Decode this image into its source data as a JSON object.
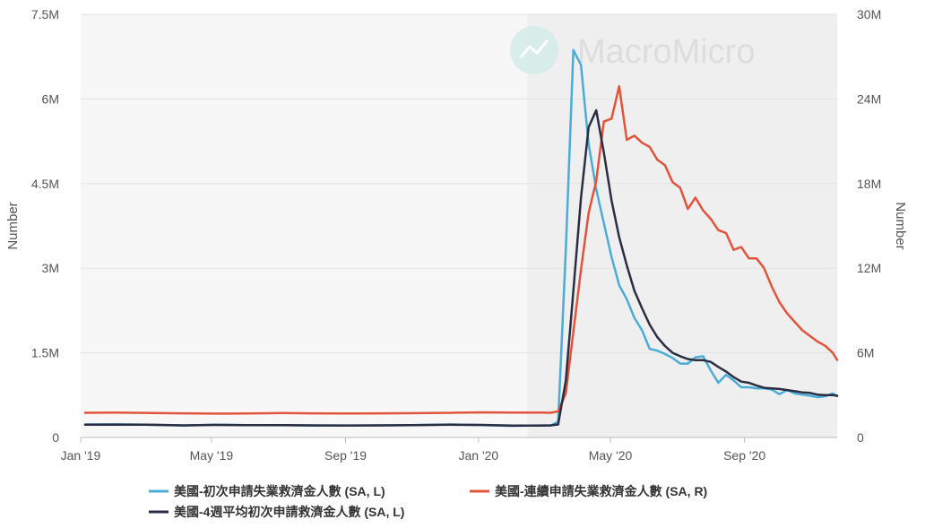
{
  "chart_data": {
    "type": "line",
    "title": "",
    "watermark": "MacroMicro",
    "y_left": {
      "label": "Number",
      "ticks": [
        "0",
        "1.5M",
        "3M",
        "4.5M",
        "6M",
        "7.5M"
      ],
      "range": [
        0,
        7500000
      ]
    },
    "y_right": {
      "label": "Number",
      "ticks": [
        "0",
        "6M",
        "12M",
        "18M",
        "24M",
        "30M"
      ],
      "range": [
        0,
        30000000
      ]
    },
    "x_axis": {
      "start": "2019-01-01",
      "end": "2020-11-25",
      "ticks": [
        {
          "label": "Jan '19",
          "date": "2019-01-01"
        },
        {
          "label": "May '19",
          "date": "2019-05-01"
        },
        {
          "label": "Sep '19",
          "date": "2019-09-01"
        },
        {
          "label": "Jan '20",
          "date": "2020-01-01"
        },
        {
          "label": "May '20",
          "date": "2020-05-01"
        },
        {
          "label": "Sep '20",
          "date": "2020-09-01"
        }
      ]
    },
    "recession_band": {
      "start": "2020-02-15",
      "end": "2020-11-25",
      "color": "#efefef"
    },
    "grid": true,
    "legend_position": "bottom",
    "series": [
      {
        "name": "美國-初次申請失業救濟金人數 (SA, L)",
        "axis": "left",
        "color": "#4bacd6",
        "points": [
          [
            "2019-01-05",
            230000
          ],
          [
            "2019-02-02",
            235000
          ],
          [
            "2019-03-02",
            225000
          ],
          [
            "2019-04-06",
            210000
          ],
          [
            "2019-05-04",
            228000
          ],
          [
            "2019-06-01",
            220000
          ],
          [
            "2019-07-06",
            216000
          ],
          [
            "2019-08-03",
            212000
          ],
          [
            "2019-09-07",
            210000
          ],
          [
            "2019-10-05",
            215000
          ],
          [
            "2019-11-02",
            220000
          ],
          [
            "2019-12-07",
            230000
          ],
          [
            "2020-01-04",
            220000
          ],
          [
            "2020-02-01",
            205000
          ],
          [
            "2020-02-29",
            215000
          ],
          [
            "2020-03-07",
            210000
          ],
          [
            "2020-03-14",
            280000
          ],
          [
            "2020-03-21",
            3300000
          ],
          [
            "2020-03-28",
            6867000
          ],
          [
            "2020-04-04",
            6600000
          ],
          [
            "2020-04-11",
            5200000
          ],
          [
            "2020-04-18",
            4400000
          ],
          [
            "2020-04-25",
            3800000
          ],
          [
            "2020-05-02",
            3200000
          ],
          [
            "2020-05-09",
            2700000
          ],
          [
            "2020-05-16",
            2450000
          ],
          [
            "2020-05-23",
            2120000
          ],
          [
            "2020-05-30",
            1900000
          ],
          [
            "2020-06-06",
            1570000
          ],
          [
            "2020-06-13",
            1540000
          ],
          [
            "2020-06-20",
            1480000
          ],
          [
            "2020-06-27",
            1410000
          ],
          [
            "2020-07-04",
            1310000
          ],
          [
            "2020-07-11",
            1310000
          ],
          [
            "2020-07-18",
            1420000
          ],
          [
            "2020-07-25",
            1440000
          ],
          [
            "2020-08-01",
            1190000
          ],
          [
            "2020-08-08",
            970000
          ],
          [
            "2020-08-15",
            1110000
          ],
          [
            "2020-08-22",
            1010000
          ],
          [
            "2020-08-29",
            890000
          ],
          [
            "2020-09-05",
            890000
          ],
          [
            "2020-09-12",
            870000
          ],
          [
            "2020-09-19",
            870000
          ],
          [
            "2020-09-26",
            849000
          ],
          [
            "2020-10-03",
            767000
          ],
          [
            "2020-10-10",
            840000
          ],
          [
            "2020-10-17",
            780000
          ],
          [
            "2020-10-24",
            760000
          ],
          [
            "2020-10-31",
            740000
          ],
          [
            "2020-11-07",
            715000
          ],
          [
            "2020-11-14",
            730000
          ],
          [
            "2020-11-21",
            780000
          ],
          [
            "2020-11-25",
            730000
          ]
        ]
      },
      {
        "name": "美國-連續申請失業救濟金人數 (SA, R)",
        "axis": "right",
        "color": "#e0543c",
        "points": [
          [
            "2019-01-05",
            1750000
          ],
          [
            "2019-02-02",
            1760000
          ],
          [
            "2019-03-02",
            1740000
          ],
          [
            "2019-04-06",
            1710000
          ],
          [
            "2019-05-04",
            1690000
          ],
          [
            "2019-06-01",
            1700000
          ],
          [
            "2019-07-06",
            1730000
          ],
          [
            "2019-08-03",
            1710000
          ],
          [
            "2019-09-07",
            1700000
          ],
          [
            "2019-10-05",
            1710000
          ],
          [
            "2019-11-02",
            1720000
          ],
          [
            "2019-12-07",
            1750000
          ],
          [
            "2020-01-04",
            1780000
          ],
          [
            "2020-02-01",
            1760000
          ],
          [
            "2020-02-29",
            1760000
          ],
          [
            "2020-03-07",
            1750000
          ],
          [
            "2020-03-14",
            1850000
          ],
          [
            "2020-03-21",
            3100000
          ],
          [
            "2020-03-28",
            7500000
          ],
          [
            "2020-04-04",
            11900000
          ],
          [
            "2020-04-11",
            15900000
          ],
          [
            "2020-04-18",
            18200000
          ],
          [
            "2020-04-25",
            22400000
          ],
          [
            "2020-05-02",
            22600000
          ],
          [
            "2020-05-09",
            24900000
          ],
          [
            "2020-05-16",
            21100000
          ],
          [
            "2020-05-23",
            21400000
          ],
          [
            "2020-05-30",
            20900000
          ],
          [
            "2020-06-06",
            20600000
          ],
          [
            "2020-06-13",
            19700000
          ],
          [
            "2020-06-20",
            19300000
          ],
          [
            "2020-06-27",
            18100000
          ],
          [
            "2020-07-04",
            17700000
          ],
          [
            "2020-07-11",
            16200000
          ],
          [
            "2020-07-18",
            17000000
          ],
          [
            "2020-07-25",
            16100000
          ],
          [
            "2020-08-01",
            15500000
          ],
          [
            "2020-08-08",
            14700000
          ],
          [
            "2020-08-15",
            14500000
          ],
          [
            "2020-08-22",
            13300000
          ],
          [
            "2020-08-29",
            13500000
          ],
          [
            "2020-09-05",
            12700000
          ],
          [
            "2020-09-12",
            12700000
          ],
          [
            "2020-09-19",
            12000000
          ],
          [
            "2020-09-26",
            10700000
          ],
          [
            "2020-10-03",
            9600000
          ],
          [
            "2020-10-10",
            8800000
          ],
          [
            "2020-10-17",
            8200000
          ],
          [
            "2020-10-24",
            7600000
          ],
          [
            "2020-10-31",
            7200000
          ],
          [
            "2020-11-07",
            6800000
          ],
          [
            "2020-11-14",
            6500000
          ],
          [
            "2020-11-21",
            6000000
          ],
          [
            "2020-11-25",
            5500000
          ]
        ]
      },
      {
        "name": "美國-4週平均初次申請救濟金人數 (SA, L)",
        "axis": "left",
        "color": "#2b2d42",
        "points": [
          [
            "2019-01-05",
            225000
          ],
          [
            "2019-02-02",
            228000
          ],
          [
            "2019-03-02",
            225000
          ],
          [
            "2019-04-06",
            215000
          ],
          [
            "2019-05-04",
            222000
          ],
          [
            "2019-06-01",
            220000
          ],
          [
            "2019-07-06",
            217000
          ],
          [
            "2019-08-03",
            214000
          ],
          [
            "2019-09-07",
            213000
          ],
          [
            "2019-10-05",
            214000
          ],
          [
            "2019-11-02",
            218000
          ],
          [
            "2019-12-07",
            225000
          ],
          [
            "2020-01-04",
            222000
          ],
          [
            "2020-02-01",
            210000
          ],
          [
            "2020-02-29",
            212000
          ],
          [
            "2020-03-07",
            214000
          ],
          [
            "2020-03-14",
            230000
          ],
          [
            "2020-03-21",
            1000000
          ],
          [
            "2020-03-28",
            2600000
          ],
          [
            "2020-04-04",
            4250000
          ],
          [
            "2020-04-11",
            5500000
          ],
          [
            "2020-04-18",
            5800000
          ],
          [
            "2020-04-25",
            5050000
          ],
          [
            "2020-05-02",
            4200000
          ],
          [
            "2020-05-09",
            3550000
          ],
          [
            "2020-05-16",
            3050000
          ],
          [
            "2020-05-23",
            2600000
          ],
          [
            "2020-05-30",
            2290000
          ],
          [
            "2020-06-06",
            2000000
          ],
          [
            "2020-06-13",
            1780000
          ],
          [
            "2020-06-20",
            1620000
          ],
          [
            "2020-06-27",
            1500000
          ],
          [
            "2020-07-04",
            1440000
          ],
          [
            "2020-07-11",
            1390000
          ],
          [
            "2020-07-18",
            1370000
          ],
          [
            "2020-07-25",
            1370000
          ],
          [
            "2020-08-01",
            1340000
          ],
          [
            "2020-08-08",
            1250000
          ],
          [
            "2020-08-15",
            1170000
          ],
          [
            "2020-08-22",
            1070000
          ],
          [
            "2020-08-29",
            990000
          ],
          [
            "2020-09-05",
            970000
          ],
          [
            "2020-09-12",
            920000
          ],
          [
            "2020-09-19",
            880000
          ],
          [
            "2020-09-26",
            870000
          ],
          [
            "2020-10-03",
            860000
          ],
          [
            "2020-10-10",
            840000
          ],
          [
            "2020-10-17",
            820000
          ],
          [
            "2020-10-24",
            800000
          ],
          [
            "2020-10-31",
            790000
          ],
          [
            "2020-11-07",
            760000
          ],
          [
            "2020-11-14",
            750000
          ],
          [
            "2020-11-21",
            750000
          ],
          [
            "2020-11-25",
            740000
          ]
        ]
      }
    ]
  }
}
